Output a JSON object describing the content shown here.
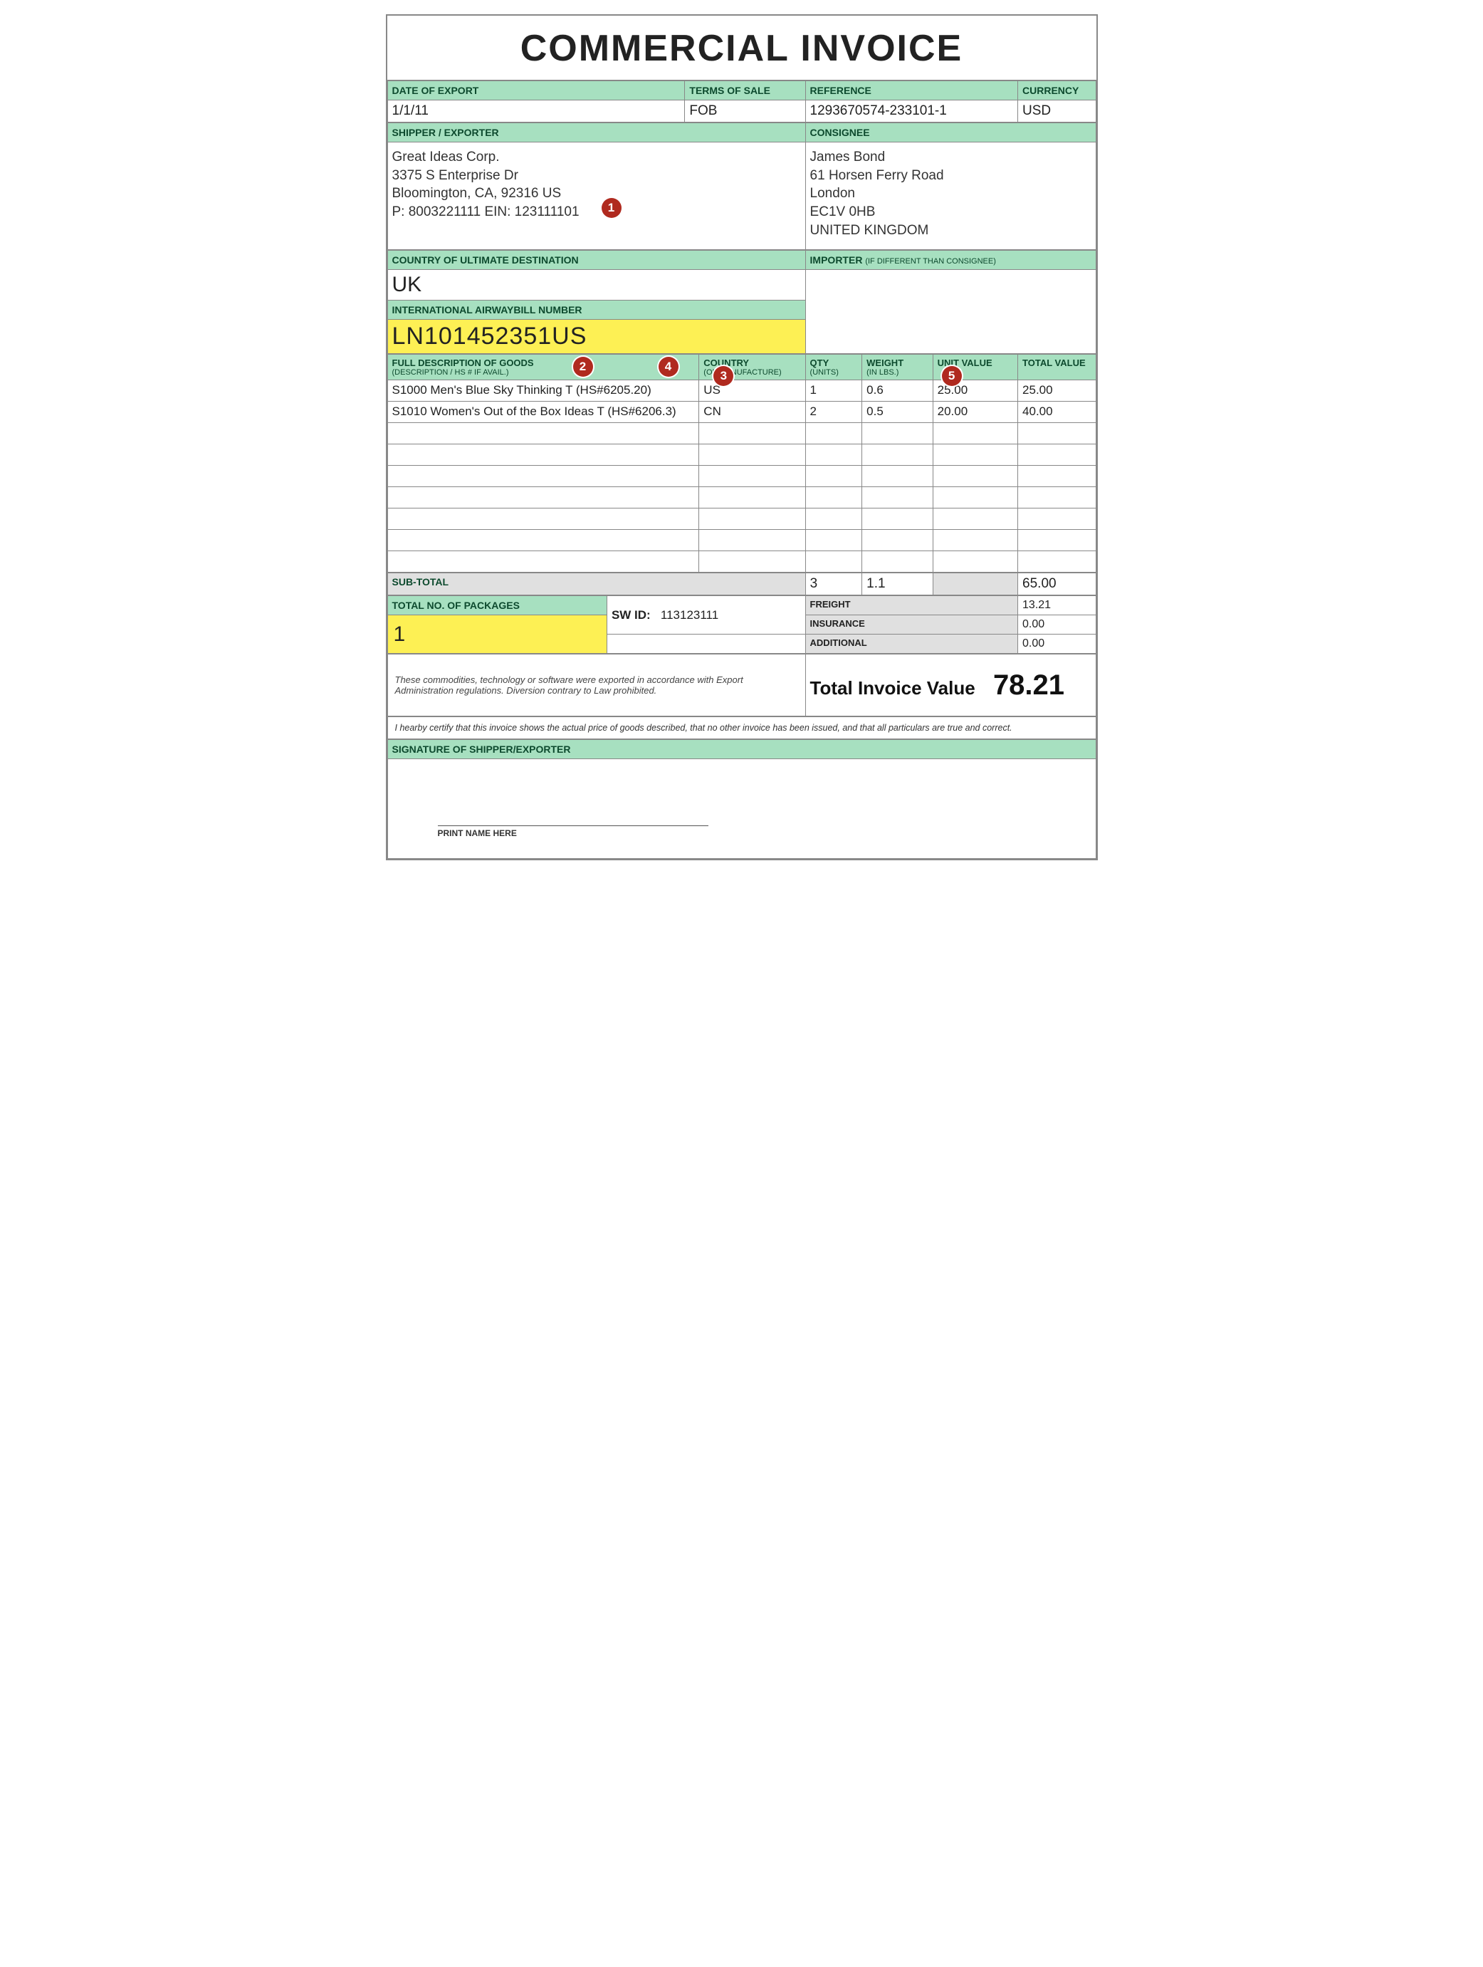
{
  "title": "COMMERCIAL INVOICE",
  "colors": {
    "header_bg": "#a7e0c0",
    "highlight_bg": "#fdf054",
    "gray_bg": "#e0e0e0",
    "border": "#888888",
    "badge": "#b02a1f"
  },
  "row1": {
    "date_label": "DATE OF EXPORT",
    "date_value": "1/1/11",
    "terms_label": "TERMS OF SALE",
    "terms_value": "FOB",
    "ref_label": "REFERENCE",
    "ref_value": "1293670574-233101-1",
    "currency_label": "CURRENCY",
    "currency_value": "USD"
  },
  "parties": {
    "shipper_label": "SHIPPER / EXPORTER",
    "shipper_lines": [
      "Great Ideas Corp.",
      "3375 S Enterprise Dr",
      "Bloomington, CA, 92316 US",
      "P: 8003221111 EIN: 123111101"
    ],
    "consignee_label": "CONSIGNEE",
    "consignee_lines": [
      "James Bond",
      "61 Horsen Ferry Road",
      "London",
      "EC1V 0HB",
      "UNITED KINGDOM"
    ]
  },
  "dest": {
    "label": "COUNTRY OF ULTIMATE DESTINATION",
    "value": "UK",
    "importer_label": "IMPORTER",
    "importer_sub": "(IF DIFFERENT THAN CONSIGNEE)"
  },
  "awb": {
    "label": "INTERNATIONAL AIRWAYBILL NUMBER",
    "value": "LN101452351US"
  },
  "items": {
    "headers": {
      "desc": "FULL DESCRIPTION OF GOODS",
      "desc_sub": "(DESCRIPTION / HS # IF AVAIL.)",
      "country": "COUNTRY",
      "country_sub": "(OF MANUFACTURE)",
      "qty": "QTY",
      "qty_sub": "(UNITS)",
      "weight": "WEIGHT",
      "weight_sub": "(IN LBS.)",
      "unit": "UNIT VALUE",
      "total": "TOTAL VALUE"
    },
    "rows": [
      {
        "desc": "S1000 Men's Blue Sky Thinking T (HS#6205.20)",
        "country": "US",
        "qty": "1",
        "weight": "0.6",
        "unit": "25.00",
        "total": "25.00"
      },
      {
        "desc": "S1010 Women's Out of the Box Ideas T (HS#6206.3)",
        "country": "CN",
        "qty": "2",
        "weight": "0.5",
        "unit": "20.00",
        "total": "40.00"
      }
    ],
    "blank_rows": 7
  },
  "subtotal": {
    "label": "SUB-TOTAL",
    "qty": "3",
    "weight": "1.1",
    "total": "65.00"
  },
  "packages": {
    "label": "TOTAL NO. OF PACKAGES",
    "value": "1",
    "swid_label": "SW ID:",
    "swid_value": "113123111"
  },
  "charges": {
    "freight_label": "FREIGHT",
    "freight_value": "13.21",
    "insurance_label": "INSURANCE",
    "insurance_value": "0.00",
    "additional_label": "ADDITIONAL",
    "additional_value": "0.00"
  },
  "disclaimer": "These commodities, technology or software were exported in accordance with Export Administration regulations.  Diversion contrary to Law prohibited.",
  "total": {
    "label": "Total Invoice Value",
    "value": "78.21"
  },
  "cert": "I hearby certify that this invoice shows the actual price of goods described, that no other invoice has been issued, and that all particulars are true and correct.",
  "signature": {
    "label": "SIGNATURE OF SHIPPER/EXPORTER",
    "print_name": "PRINT NAME HERE"
  },
  "badges": [
    "1",
    "2",
    "3",
    "4",
    "5"
  ]
}
